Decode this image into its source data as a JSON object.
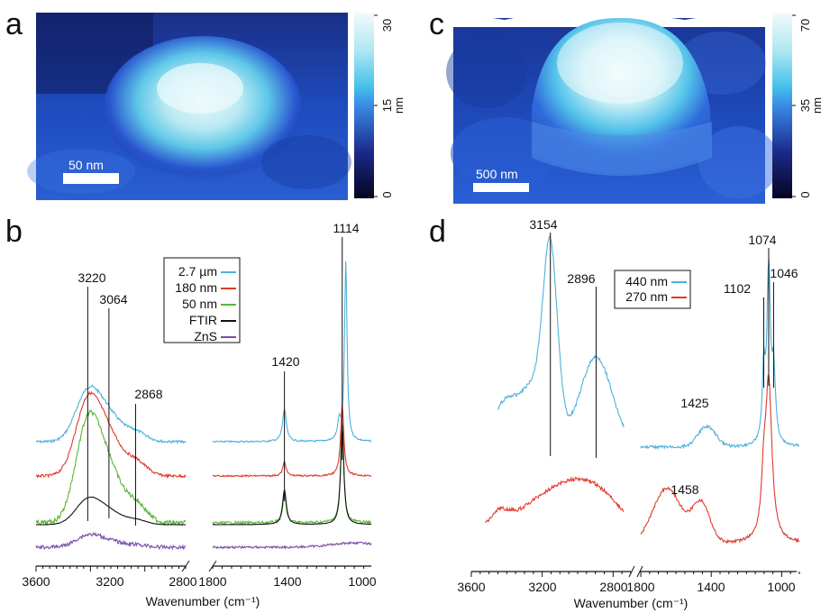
{
  "panels": {
    "a": {
      "label": "a",
      "scalebar": "50 nm",
      "colorbar": {
        "ticks": [
          "30",
          "15",
          "0"
        ],
        "unit": "nm",
        "range": [
          0,
          30
        ]
      }
    },
    "c": {
      "label": "c",
      "scalebar": "500 nm",
      "colorbar": {
        "ticks": [
          "70",
          "35",
          "0"
        ],
        "unit": "nm",
        "range": [
          0,
          70
        ]
      }
    },
    "b": {
      "label": "b"
    },
    "d": {
      "label": "d"
    }
  },
  "colors": {
    "cyan": "#4fb0dc",
    "red": "#e03a2c",
    "green": "#5cb53a",
    "black": "#111111",
    "purple": "#7a4ea8",
    "cmap_dark": "#0a0a30",
    "cmap_mid": "#2a58d0",
    "cmap_light": "#e8f8fb"
  },
  "chart_data": [
    {
      "id": "b",
      "type": "line",
      "xlabel": "Wavenumber (cm⁻¹)",
      "x_axis_break": true,
      "segments": [
        {
          "xlim": [
            3600,
            2500
          ],
          "ticks": [
            "3600",
            "3200",
            "2800"
          ]
        },
        {
          "xlim": [
            1800,
            960
          ],
          "ticks": [
            "1800",
            "1400",
            "1000"
          ]
        }
      ],
      "legend": {
        "placement": "upper-center",
        "entries": [
          {
            "name": "2.7 µm",
            "color": "#4fb0dc"
          },
          {
            "name": "180 nm",
            "color": "#e03a2c"
          },
          {
            "name": "50 nm",
            "color": "#5cb53a"
          },
          {
            "name": "FTIR",
            "color": "#111111"
          },
          {
            "name": "ZnS",
            "color": "#7a4ea8"
          }
        ]
      },
      "peak_labels": [
        "3220",
        "3064",
        "2868",
        "1420",
        "1114"
      ],
      "peaks": [
        3220,
        3064,
        2868,
        1420,
        1114
      ],
      "series_order": [
        "2.7 µm",
        "180 nm",
        "50 nm",
        "FTIR",
        "ZnS"
      ]
    },
    {
      "id": "d",
      "type": "line",
      "xlabel": "Wavenumber (cm⁻¹)",
      "x_axis_break": true,
      "segments": [
        {
          "xlim": [
            3600,
            2700
          ],
          "ticks": [
            "3600",
            "3200",
            "2800"
          ]
        },
        {
          "xlim": [
            1800,
            900
          ],
          "ticks": [
            "1800",
            "1400",
            "1000"
          ]
        }
      ],
      "legend": {
        "placement": "upper-center",
        "entries": [
          {
            "name": "440 nm",
            "color": "#4fb0dc"
          },
          {
            "name": "270 nm",
            "color": "#e03a2c"
          }
        ]
      },
      "peak_labels": [
        "3154",
        "2896",
        "1425",
        "1458",
        "1102",
        "1074",
        "1046"
      ],
      "peaks": [
        3154,
        2896,
        1425,
        1458,
        1102,
        1074,
        1046
      ],
      "series_order": [
        "440 nm",
        "270 nm"
      ]
    }
  ]
}
